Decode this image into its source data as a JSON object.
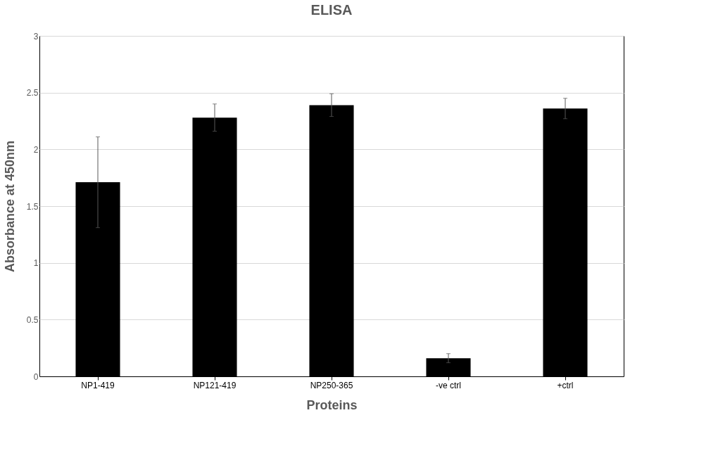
{
  "chart_data": {
    "type": "bar",
    "title": "ELISA",
    "xlabel": "Proteins",
    "ylabel": "Absorbance at 450nm",
    "categories": [
      "NP1-419",
      "NP121-419",
      "NP250-365",
      "-ve ctrl",
      "+ctrl"
    ],
    "values": [
      1.71,
      2.28,
      2.39,
      0.16,
      2.36
    ],
    "errors": [
      0.4,
      0.12,
      0.1,
      0.04,
      0.09
    ],
    "color": "#000000",
    "ylim": [
      0,
      3
    ],
    "yticks": [
      0,
      0.5,
      1,
      1.5,
      2,
      2.5,
      3
    ],
    "grid": "y"
  }
}
